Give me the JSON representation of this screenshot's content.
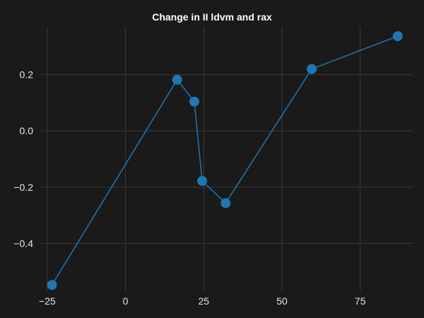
{
  "chart_data": {
    "type": "line",
    "title": "Change in II ldvm and rax",
    "xlabel": "",
    "ylabel": "",
    "xlim": [
      -27,
      92
    ],
    "ylim": [
      -0.57,
      0.37
    ],
    "x_ticks": [
      -25,
      0,
      25,
      50,
      75
    ],
    "x_tick_labels": [
      "−25",
      "0",
      "25",
      "50",
      "75"
    ],
    "y_ticks": [
      -0.4,
      -0.2,
      0.0,
      0.2
    ],
    "y_tick_labels": [
      "−0.4",
      "−0.2",
      "0.0",
      "0.2"
    ],
    "grid": true,
    "background_color": "#1a1a1a",
    "grid_color": "#3a3a3a",
    "series": [
      {
        "color": "#1f77b4",
        "marker": "circle",
        "x": [
          -23.5,
          16.5,
          22.0,
          24.5,
          32.0,
          59.5,
          87.0
        ],
        "y": [
          -0.548,
          0.182,
          0.104,
          -0.178,
          -0.257,
          0.22,
          0.337
        ]
      }
    ]
  }
}
